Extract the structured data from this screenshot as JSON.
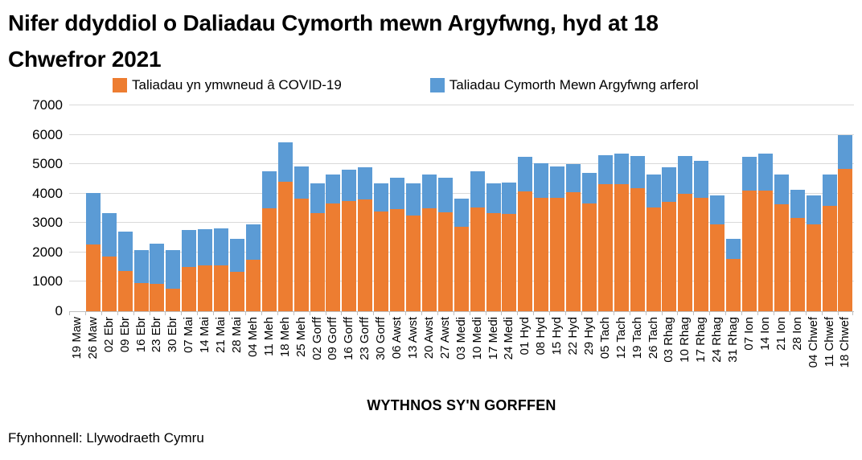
{
  "title": "Nifer ddyddiol o Daliadau Cymorth mewn Argyfwng, hyd at 18 Chwefror 2021",
  "x_axis_title": "WYTHNOS SY'N GORFFEN",
  "source": "Ffynhonnell: Llywodraeth Cymru",
  "colors": {
    "covid_orange": "#ED7D31",
    "arferol_blue": "#5B9BD5",
    "gridline": "#D9D9D9",
    "axis": "#BFBFBF"
  },
  "y_axis": {
    "min": 0,
    "max": 7000,
    "step": 1000,
    "tick_labels": [
      "0",
      "1000",
      "2000",
      "3000",
      "4000",
      "5000",
      "6000",
      "7000"
    ]
  },
  "chart_data": {
    "type": "bar",
    "stacked": true,
    "grid": true,
    "legend_position": "top",
    "title": "Nifer ddyddiol o Daliadau Cymorth mewn Argyfwng, hyd at 18 Chwefror 2021",
    "xlabel": "WYTHNOS SY'N GORFFEN",
    "ylabel": "",
    "ylim": [
      0,
      7000
    ],
    "categories": [
      "19 Maw",
      "26 Maw",
      "02 Ebr",
      "09 Ebr",
      "16 Ebr",
      "23 Ebr",
      "30 Ebr",
      "07 Mai",
      "14 Mai",
      "21 Mai",
      "28 Mai",
      "04 Meh",
      "11 Meh",
      "18 Meh",
      "25 Meh",
      "02 Gorff",
      "09 Gorff",
      "16 Gorff",
      "23 Gorff",
      "30 Gorff",
      "06 Awst",
      "13 Awst",
      "20 Awst",
      "27 Awst",
      "03 Medi",
      "10 Medi",
      "17 Medi",
      "24 Medi",
      "01 Hyd",
      "08 Hyd",
      "15 Hyd",
      "22 Hyd",
      "29 Hyd",
      "05 Tach",
      "12 Tach",
      "19 Tach",
      "26 Tach",
      "03 Rhag",
      "10 Rhag",
      "17 Rhag",
      "24 Rhag",
      "31 Rhag",
      "07 Ion",
      "14 Ion",
      "21 Ion",
      "28 Ion",
      "04 Chwef",
      "11 Chwef",
      "18 Chwef"
    ],
    "series": [
      {
        "name": "Taliadau yn ymwneud â COVID-19",
        "color": "#ED7D31",
        "values": [
          0,
          2270,
          1860,
          1360,
          950,
          930,
          760,
          1510,
          1550,
          1570,
          1350,
          1750,
          3500,
          4410,
          3820,
          3340,
          3660,
          3760,
          3790,
          3380,
          3460,
          3260,
          3500,
          3370,
          2870,
          3540,
          3330,
          3310,
          4080,
          3850,
          3850,
          4060,
          3670,
          4330,
          4330,
          4190,
          3530,
          3710,
          4000,
          3850,
          2940,
          1770,
          4110,
          4090,
          3650,
          3170,
          2960,
          3590,
          4840
        ]
      },
      {
        "name": "Taliadau Cymorth Mewn Argyfwng arferol",
        "color": "#5B9BD5",
        "values": [
          0,
          1750,
          1480,
          1340,
          1130,
          1360,
          1310,
          1260,
          1230,
          1260,
          1100,
          1200,
          1260,
          1320,
          1110,
          1020,
          1000,
          1050,
          1100,
          980,
          1080,
          1080,
          1150,
          1170,
          970,
          1230,
          1030,
          1070,
          1160,
          1190,
          1080,
          940,
          1030,
          970,
          1020,
          1100,
          1130,
          1180,
          1290,
          1270,
          1010,
          680,
          1140,
          1260,
          1010,
          970,
          970,
          1070,
          1140
        ]
      }
    ]
  }
}
